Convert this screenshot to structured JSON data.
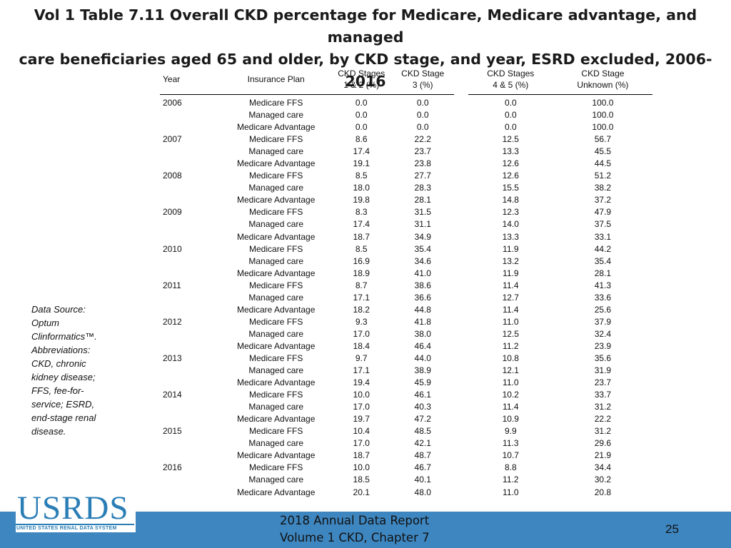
{
  "title": {
    "line1": "Vol 1 Table 7.11 Overall CKD percentage for Medicare, Medicare advantage, and managed",
    "line2": "care beneficiaries aged 65 and older, by CKD stage, and year, ESRD excluded, 2006-2016"
  },
  "table": {
    "headers": {
      "year": "Year",
      "plan": "Insurance Plan",
      "s12_line1": "CKD Stages",
      "s12_line2": "1 & 2 (%)",
      "s3_line1": "CKD Stage",
      "s3_line2": "3 (%)",
      "s45_line1": "CKD Stages",
      "s45_line2": "4 & 5 (%)",
      "unk_line1": "CKD Stage",
      "unk_line2": "Unknown (%)"
    },
    "rows": [
      [
        "2006",
        "Medicare FFS",
        "0.0",
        "0.0",
        "0.0",
        "100.0"
      ],
      [
        "",
        "Managed care",
        "0.0",
        "0.0",
        "0.0",
        "100.0"
      ],
      [
        "",
        "Medicare Advantage",
        "0.0",
        "0.0",
        "0.0",
        "100.0"
      ],
      [
        "2007",
        "Medicare FFS",
        "8.6",
        "22.2",
        "12.5",
        "56.7"
      ],
      [
        "",
        "Managed care",
        "17.4",
        "23.7",
        "13.3",
        "45.5"
      ],
      [
        "",
        "Medicare Advantage",
        "19.1",
        "23.8",
        "12.6",
        "44.5"
      ],
      [
        "2008",
        "Medicare FFS",
        "8.5",
        "27.7",
        "12.6",
        "51.2"
      ],
      [
        "",
        "Managed care",
        "18.0",
        "28.3",
        "15.5",
        "38.2"
      ],
      [
        "",
        "Medicare Advantage",
        "19.8",
        "28.1",
        "14.8",
        "37.2"
      ],
      [
        "2009",
        "Medicare FFS",
        "8.3",
        "31.5",
        "12.3",
        "47.9"
      ],
      [
        "",
        "Managed care",
        "17.4",
        "31.1",
        "14.0",
        "37.5"
      ],
      [
        "",
        "Medicare Advantage",
        "18.7",
        "34.9",
        "13.3",
        "33.1"
      ],
      [
        "2010",
        "Medicare FFS",
        "8.5",
        "35.4",
        "11.9",
        "44.2"
      ],
      [
        "",
        "Managed care",
        "16.9",
        "34.6",
        "13.2",
        "35.4"
      ],
      [
        "",
        "Medicare Advantage",
        "18.9",
        "41.0",
        "11.9",
        "28.1"
      ],
      [
        "2011",
        "Medicare FFS",
        "8.7",
        "38.6",
        "11.4",
        "41.3"
      ],
      [
        "",
        "Managed care",
        "17.1",
        "36.6",
        "12.7",
        "33.6"
      ],
      [
        "",
        "Medicare Advantage",
        "18.2",
        "44.8",
        "11.4",
        "25.6"
      ],
      [
        "2012",
        "Medicare FFS",
        "9.3",
        "41.8",
        "11.0",
        "37.9"
      ],
      [
        "",
        "Managed care",
        "17.0",
        "38.0",
        "12.5",
        "32.4"
      ],
      [
        "",
        "Medicare Advantage",
        "18.4",
        "46.4",
        "11.2",
        "23.9"
      ],
      [
        "2013",
        "Medicare FFS",
        "9.7",
        "44.0",
        "10.8",
        "35.6"
      ],
      [
        "",
        "Managed care",
        "17.1",
        "38.9",
        "12.1",
        "31.9"
      ],
      [
        "",
        "Medicare Advantage",
        "19.4",
        "45.9",
        "11.0",
        "23.7"
      ],
      [
        "2014",
        "Medicare FFS",
        "10.0",
        "46.1",
        "10.2",
        "33.7"
      ],
      [
        "",
        "Managed care",
        "17.0",
        "40.3",
        "11.4",
        "31.2"
      ],
      [
        "",
        "Medicare Advantage",
        "19.7",
        "47.2",
        "10.9",
        "22.2"
      ],
      [
        "2015",
        "Medicare FFS",
        "10.4",
        "48.5",
        "9.9",
        "31.2"
      ],
      [
        "",
        "Managed care",
        "17.0",
        "42.1",
        "11.3",
        "29.6"
      ],
      [
        "",
        "Medicare Advantage",
        "18.7",
        "48.7",
        "10.7",
        "21.9"
      ],
      [
        "2016",
        "Medicare FFS",
        "10.0",
        "46.7",
        "8.8",
        "34.4"
      ],
      [
        "",
        "Managed care",
        "18.5",
        "40.1",
        "11.2",
        "30.2"
      ],
      [
        "",
        "Medicare Advantage",
        "20.1",
        "48.0",
        "11.0",
        "20.8"
      ]
    ]
  },
  "sidenote": {
    "lines": [
      "Data Source:",
      "Optum",
      "Clinformatics™.",
      "Abbreviations:",
      "CKD, chronic",
      "kidney disease;",
      "FFS, fee-for-",
      "service; ESRD,",
      "end-stage renal",
      "disease."
    ]
  },
  "logo": {
    "word": "USRDS",
    "subtitle": "UNITED STATES RENAL DATA SYSTEM"
  },
  "footer": {
    "line1": "2018 Annual Data Report",
    "line2": "Volume 1 CKD, Chapter 7",
    "page_number": "25",
    "bar_color": "#3e86c0"
  }
}
